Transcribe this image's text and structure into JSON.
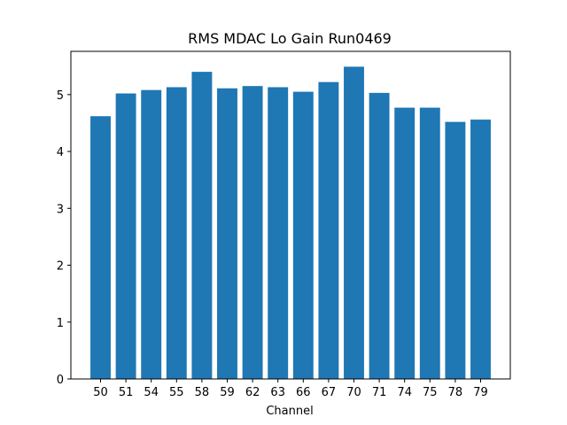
{
  "chart_data": {
    "type": "bar",
    "title": "RMS MDAC Lo Gain Run0469",
    "xlabel": "Channel",
    "ylabel": "",
    "categories": [
      "50",
      "51",
      "54",
      "55",
      "58",
      "59",
      "62",
      "63",
      "66",
      "67",
      "70",
      "71",
      "74",
      "75",
      "78",
      "79"
    ],
    "values": [
      4.62,
      5.02,
      5.08,
      5.13,
      5.4,
      5.11,
      5.15,
      5.13,
      5.05,
      5.22,
      5.49,
      5.03,
      4.77,
      4.77,
      4.52,
      4.56
    ],
    "ylim": [
      0,
      5.76
    ],
    "yticks": [
      0,
      1,
      2,
      3,
      4,
      5
    ],
    "bar_color": "#1f77b4",
    "grid": false,
    "legend": "none"
  }
}
